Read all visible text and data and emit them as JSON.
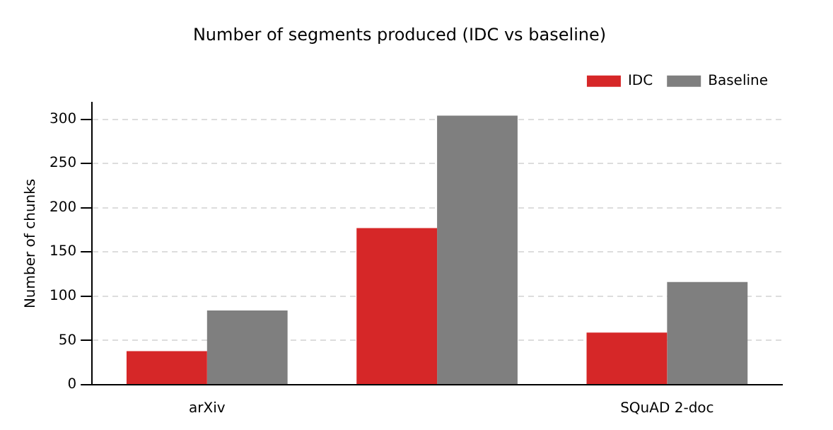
{
  "chart_data": {
    "type": "bar",
    "title": "Number of segments produced (IDC vs baseline)",
    "ylabel": "Number of chunks",
    "categories": [
      "arXiv",
      null,
      "SQuAD 2-doc"
    ],
    "series": [
      {
        "name": "IDC",
        "color": "#d62728",
        "values": [
          38,
          177,
          59
        ]
      },
      {
        "name": "Baseline",
        "color": "#7f7f7f",
        "values": [
          84,
          304,
          116
        ]
      }
    ],
    "ylim": [
      0,
      319
    ],
    "yticks": [
      0,
      50,
      100,
      150,
      200,
      250,
      300
    ],
    "grid": "y",
    "legend": "top right"
  }
}
